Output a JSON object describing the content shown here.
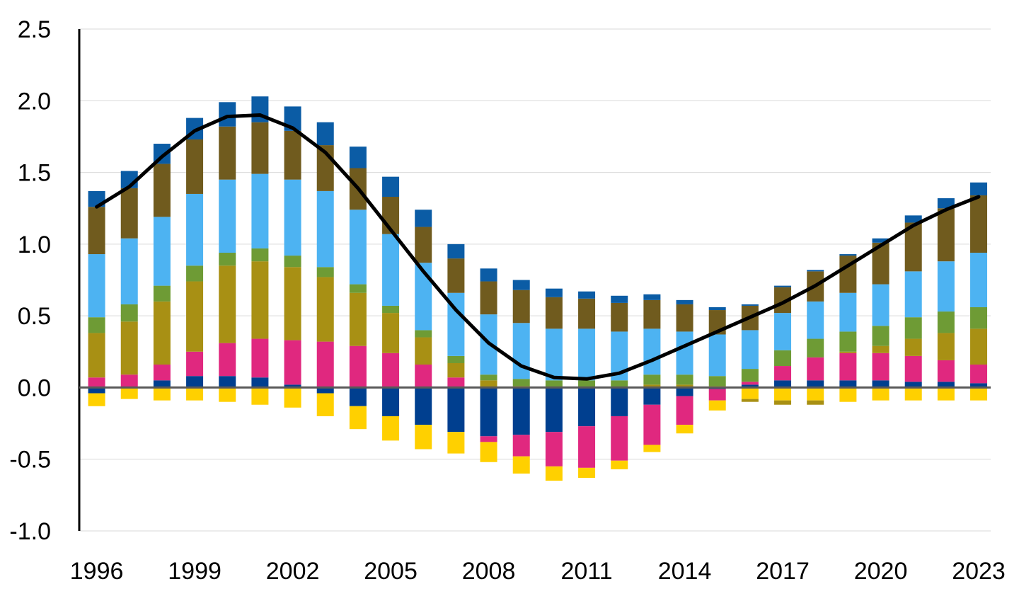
{
  "chart_data": {
    "type": "bar",
    "stacked": true,
    "title": "",
    "xlabel": "",
    "ylabel": "",
    "ylim": [
      -1.0,
      2.5
    ],
    "y_ticks": [
      "2.5",
      "2.0",
      "1.5",
      "1.0",
      "0.5",
      "0.0",
      "-0.5",
      "-1.0"
    ],
    "y_tick_values": [
      2.5,
      2.0,
      1.5,
      1.0,
      0.5,
      0.0,
      -0.5,
      -1.0
    ],
    "x_ticks": [
      "1996",
      "1999",
      "2002",
      "2005",
      "2008",
      "2011",
      "2014",
      "2017",
      "2020",
      "2023"
    ],
    "grid": "horizontal",
    "legend": "none",
    "categories": [
      "1996",
      "1997",
      "1998",
      "1999",
      "2000",
      "2001",
      "2002",
      "2003",
      "2004",
      "2005",
      "2006",
      "2007",
      "2008",
      "2009",
      "2010",
      "2011",
      "2012",
      "2013",
      "2014",
      "2015",
      "2016",
      "2017",
      "2018",
      "2019",
      "2020",
      "2021",
      "2022",
      "2023"
    ],
    "series": [
      {
        "color": "#003F8F",
        "values": [
          -0.04,
          0.0,
          0.05,
          0.08,
          0.08,
          0.07,
          0.02,
          -0.04,
          -0.13,
          -0.2,
          -0.26,
          -0.31,
          -0.34,
          -0.33,
          -0.31,
          -0.27,
          -0.2,
          -0.12,
          -0.06,
          -0.01,
          0.02,
          0.05,
          0.05,
          0.05,
          0.05,
          0.04,
          0.04,
          0.03
        ]
      },
      {
        "color": "#E0287F",
        "values": [
          0.07,
          0.09,
          0.11,
          0.17,
          0.23,
          0.27,
          0.31,
          0.32,
          0.29,
          0.24,
          0.16,
          0.07,
          -0.04,
          -0.15,
          -0.24,
          -0.29,
          -0.31,
          -0.28,
          -0.2,
          -0.08,
          0.02,
          0.1,
          0.16,
          0.19,
          0.19,
          0.18,
          0.15,
          0.13
        ]
      },
      {
        "color": "#FFD000",
        "values": [
          -0.09,
          -0.08,
          -0.09,
          -0.09,
          -0.1,
          -0.12,
          -0.14,
          -0.16,
          -0.16,
          -0.17,
          -0.17,
          -0.15,
          -0.14,
          -0.12,
          -0.1,
          -0.07,
          -0.06,
          -0.05,
          -0.06,
          -0.07,
          -0.08,
          -0.09,
          -0.09,
          -0.1,
          -0.09,
          -0.09,
          -0.09,
          -0.09
        ]
      },
      {
        "color": "#A89014",
        "values": [
          0.31,
          0.37,
          0.44,
          0.49,
          0.54,
          0.54,
          0.51,
          0.45,
          0.37,
          0.28,
          0.19,
          0.1,
          0.05,
          0.01,
          0.0,
          0.0,
          0.0,
          0.02,
          0.02,
          0.01,
          -0.02,
          -0.03,
          -0.03,
          0.01,
          0.05,
          0.12,
          0.19,
          0.25
        ]
      },
      {
        "color": "#6E9B35",
        "values": [
          0.11,
          0.12,
          0.11,
          0.11,
          0.09,
          0.09,
          0.08,
          0.07,
          0.06,
          0.05,
          0.05,
          0.05,
          0.04,
          0.05,
          0.05,
          0.05,
          0.05,
          0.07,
          0.07,
          0.07,
          0.09,
          0.11,
          0.13,
          0.14,
          0.14,
          0.15,
          0.15,
          0.15
        ]
      },
      {
        "color": "#4DB3F2",
        "values": [
          0.44,
          0.46,
          0.48,
          0.5,
          0.51,
          0.52,
          0.53,
          0.53,
          0.52,
          0.5,
          0.47,
          0.44,
          0.42,
          0.39,
          0.36,
          0.36,
          0.34,
          0.32,
          0.3,
          0.29,
          0.27,
          0.26,
          0.26,
          0.27,
          0.29,
          0.32,
          0.35,
          0.38
        ]
      },
      {
        "color": "#705B1E",
        "values": [
          0.33,
          0.35,
          0.37,
          0.38,
          0.37,
          0.36,
          0.34,
          0.32,
          0.29,
          0.26,
          0.25,
          0.24,
          0.23,
          0.23,
          0.22,
          0.21,
          0.2,
          0.2,
          0.19,
          0.17,
          0.17,
          0.18,
          0.21,
          0.26,
          0.29,
          0.34,
          0.37,
          0.4
        ]
      },
      {
        "color": "#0B5CA5",
        "values": [
          0.11,
          0.12,
          0.14,
          0.15,
          0.17,
          0.18,
          0.17,
          0.16,
          0.15,
          0.14,
          0.12,
          0.1,
          0.09,
          0.07,
          0.06,
          0.05,
          0.05,
          0.04,
          0.03,
          0.02,
          0.01,
          0.01,
          0.01,
          0.01,
          0.03,
          0.05,
          0.07,
          0.09
        ]
      }
    ],
    "total": {
      "color": "#000000",
      "values": [
        1.26,
        1.4,
        1.61,
        1.79,
        1.89,
        1.9,
        1.81,
        1.64,
        1.39,
        1.1,
        0.81,
        0.54,
        0.31,
        0.15,
        0.07,
        0.06,
        0.1,
        0.19,
        0.29,
        0.39,
        0.49,
        0.59,
        0.71,
        0.85,
        0.99,
        1.13,
        1.24,
        1.33
      ]
    }
  }
}
